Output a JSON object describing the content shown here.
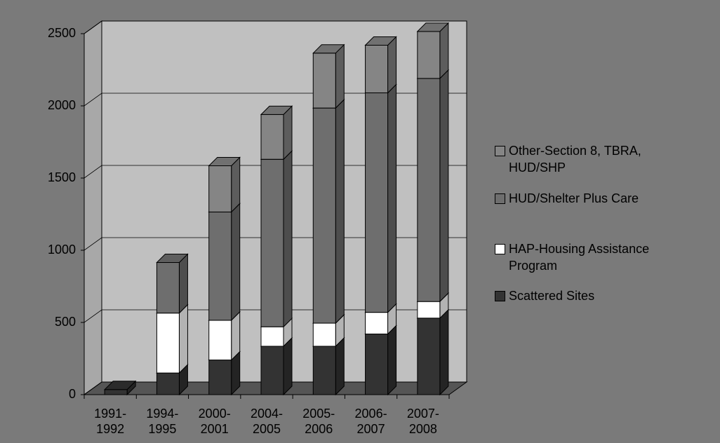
{
  "chart_data": {
    "type": "bar3d_stacked",
    "categories": [
      "1991-1992",
      "1994-1995",
      "2000-2001",
      "2004-2005",
      "2005-2006",
      "2006-2007",
      "2007-2008"
    ],
    "series": [
      {
        "name": "Scattered Sites",
        "color": "#333333",
        "values": [
          35,
          150,
          240,
          335,
          335,
          420,
          530
        ]
      },
      {
        "name": "HAP-Housing Assistance Program",
        "color": "#ffffff",
        "values": [
          0,
          415,
          275,
          135,
          160,
          150,
          115
        ]
      },
      {
        "name": "HUD/Shelter Plus Care",
        "color": "#6e6e6e",
        "values": [
          0,
          350,
          750,
          1160,
          1490,
          1520,
          1545
        ]
      },
      {
        "name": "Other-Section 8, TBRA, HUD/SHP",
        "color": "#858585",
        "values": [
          0,
          0,
          320,
          310,
          380,
          330,
          325
        ]
      }
    ],
    "ylim": [
      0,
      2500
    ],
    "yticks": [
      0,
      500,
      1000,
      1500,
      2000,
      2500
    ],
    "grid": true
  }
}
